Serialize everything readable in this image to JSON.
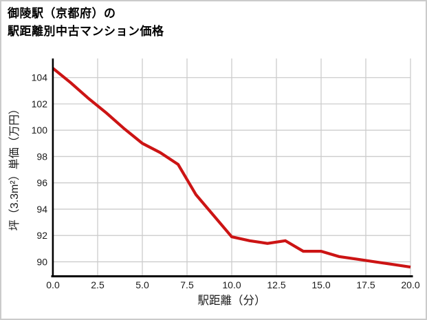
{
  "title": {
    "line1": "御陵駅（京都府）の",
    "line2": "駅距離別中古マンション価格"
  },
  "chart_data": {
    "type": "line",
    "title": "御陵駅（京都府）の駅距離別中古マンション価格",
    "xlabel": "駅距離（分）",
    "ylabel": "坪（3.3m²）単価（万円）",
    "x": [
      0,
      1,
      2,
      3,
      4,
      5,
      6,
      7,
      8,
      9,
      10,
      11,
      12,
      13,
      14,
      15,
      16,
      17,
      18,
      19,
      20
    ],
    "values": [
      104.7,
      103.6,
      102.4,
      101.3,
      100.1,
      99.0,
      98.3,
      97.4,
      95.1,
      93.5,
      91.9,
      91.6,
      91.4,
      91.6,
      90.8,
      90.8,
      90.4,
      90.2,
      90.0,
      89.8,
      89.6
    ],
    "xlim": [
      0,
      20
    ],
    "ylim": [
      88.95,
      105.45
    ],
    "xtick_values": [
      0,
      2.5,
      5,
      7.5,
      10,
      12.5,
      15,
      17.5,
      20
    ],
    "xtick_labels": [
      "0.0",
      "2.5",
      "5.0",
      "7.5",
      "10.0",
      "12.5",
      "15.0",
      "17.5",
      "20.0"
    ],
    "ytick_values": [
      90,
      92,
      94,
      96,
      98,
      100,
      102,
      104
    ],
    "ytick_labels": [
      "90",
      "92",
      "94",
      "96",
      "98",
      "100",
      "102",
      "104"
    ],
    "grid": true,
    "legend": "none"
  },
  "colors": {
    "line": "#cc1414",
    "grid": "#cccccc",
    "axis": "#000000",
    "text": "#1a1a1a",
    "background": "#ffffff",
    "frame": "#cbcbcb"
  },
  "style": {
    "line_width": 4.2
  }
}
